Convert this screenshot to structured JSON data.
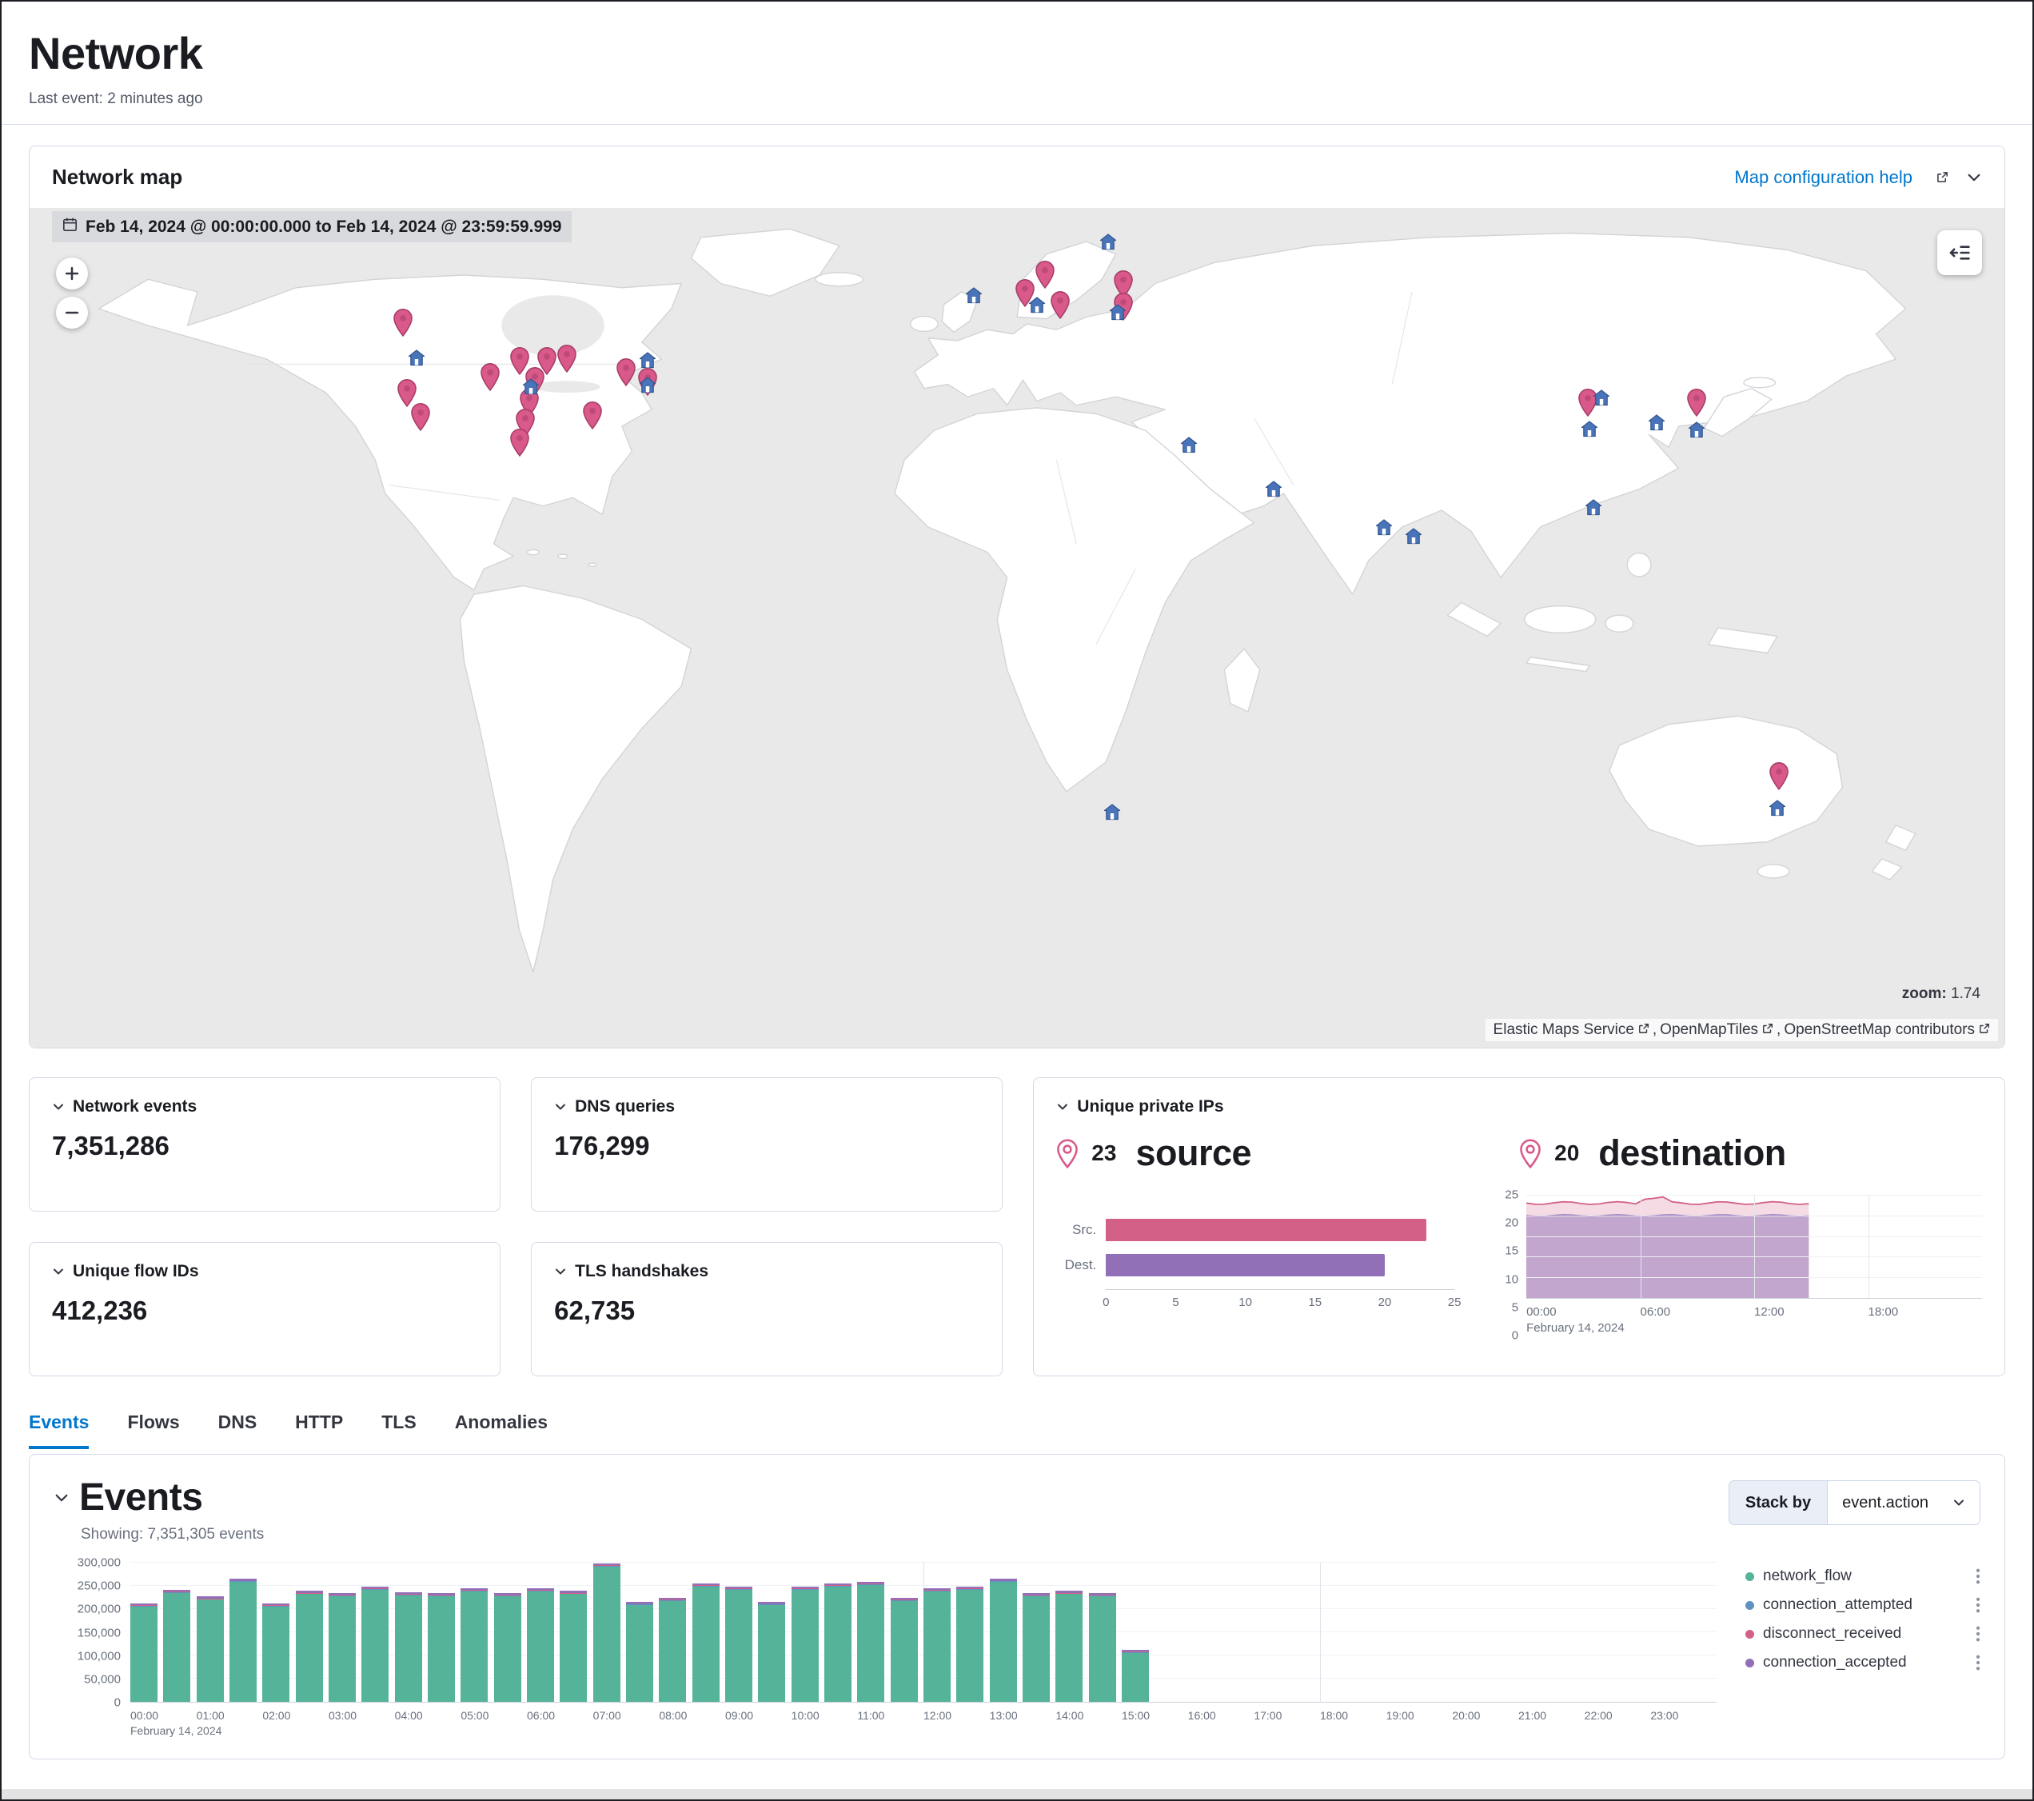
{
  "header": {
    "title": "Network",
    "last_event": "Last event: 2 minutes ago"
  },
  "map_panel": {
    "title": "Network map",
    "help_link": "Map configuration help",
    "date_badge": "Feb 14, 2024 @ 00:00:00.000 to Feb 14, 2024 @ 23:59:59.999",
    "zoom_label": "zoom:",
    "zoom_value": "1.74",
    "attribution_links": [
      "Elastic Maps Service",
      "OpenMapTiles",
      "OpenStreetMap contributors"
    ],
    "colors": {
      "source_pin": "#d9598b",
      "source_pin_stroke": "#a83e67",
      "host_marker": "#4a74b9",
      "host_marker_stroke": "#33568f",
      "ocean": "#e9e9e9",
      "land": "#ffffff"
    },
    "source_pins": [
      [
        18.9,
        15.6
      ],
      [
        23.3,
        22.1
      ],
      [
        24.8,
        20.2
      ],
      [
        26.2,
        20.2
      ],
      [
        27.2,
        19.9
      ],
      [
        25.6,
        22.6
      ],
      [
        25.3,
        25.1
      ],
      [
        25.1,
        27.5
      ],
      [
        24.8,
        29.9
      ],
      [
        28.5,
        26.7
      ],
      [
        30.2,
        21.5
      ],
      [
        31.3,
        22.7
      ],
      [
        19.1,
        24.0
      ],
      [
        19.8,
        26.9
      ],
      [
        51.4,
        9.9
      ],
      [
        52.2,
        13.5
      ],
      [
        50.4,
        12.1
      ],
      [
        55.4,
        11.0
      ],
      [
        55.4,
        13.7
      ],
      [
        84.4,
        25.1
      ],
      [
        78.9,
        25.1
      ],
      [
        88.6,
        69.6
      ]
    ],
    "host_markers": [
      [
        19.6,
        18.1
      ],
      [
        25.4,
        21.5
      ],
      [
        31.3,
        18.4
      ],
      [
        31.3,
        21.3
      ],
      [
        47.8,
        10.7
      ],
      [
        51.0,
        11.8
      ],
      [
        55.1,
        12.7
      ],
      [
        54.6,
        4.3
      ],
      [
        58.7,
        28.5
      ],
      [
        63.0,
        33.7
      ],
      [
        68.6,
        38.3
      ],
      [
        70.1,
        39.3
      ],
      [
        79.6,
        22.9
      ],
      [
        82.4,
        25.8
      ],
      [
        84.4,
        26.7
      ],
      [
        79.0,
        26.6
      ],
      [
        79.2,
        35.9
      ],
      [
        54.8,
        72.2
      ],
      [
        88.5,
        71.7
      ]
    ]
  },
  "kpi_cards": [
    {
      "label": "Network events",
      "value": "7,351,286"
    },
    {
      "label": "DNS queries",
      "value": "176,299"
    },
    {
      "label": "Unique flow IDs",
      "value": "412,236"
    },
    {
      "label": "TLS handshakes",
      "value": "62,735"
    }
  ],
  "unique_ips": {
    "label": "Unique private IPs",
    "source_count": "23",
    "source_label": "source",
    "dest_count": "20",
    "dest_label": "destination"
  },
  "tabs": [
    {
      "label": "Events",
      "active": true
    },
    {
      "label": "Flows",
      "active": false
    },
    {
      "label": "DNS",
      "active": false
    },
    {
      "label": "HTTP",
      "active": false
    },
    {
      "label": "TLS",
      "active": false
    },
    {
      "label": "Anomalies",
      "active": false
    }
  ],
  "events_panel": {
    "title": "Events",
    "showing": "Showing: 7,351,305 events",
    "stack_by_label": "Stack by",
    "stack_by_value": "event.action",
    "legend": [
      {
        "label": "network_flow",
        "color": "#54b399"
      },
      {
        "label": "connection_attempted",
        "color": "#6092c0"
      },
      {
        "label": "disconnect_received",
        "color": "#d36086"
      },
      {
        "label": "connection_accepted",
        "color": "#9170b8"
      }
    ]
  },
  "chart_data": [
    {
      "name": "unique_private_ips_bar",
      "type": "bar",
      "orientation": "horizontal",
      "categories": [
        "Src.",
        "Dest."
      ],
      "values": [
        23,
        20
      ],
      "colors": [
        "#d36086",
        "#9170b8"
      ],
      "xlim": [
        0,
        25
      ],
      "x_ticks": [
        0,
        5,
        10,
        15,
        20,
        25
      ]
    },
    {
      "name": "unique_private_ips_over_time",
      "type": "area",
      "x_ticks": [
        "00:00",
        "06:00",
        "12:00",
        "18:00"
      ],
      "date_label": "February 14, 2024",
      "ylim": [
        0,
        25
      ],
      "y_ticks": [
        25,
        20,
        15,
        10,
        5,
        0
      ],
      "series": [
        {
          "name": "source",
          "color": "#d36086",
          "approx_level": 23
        },
        {
          "name": "destination",
          "color": "#9170b8",
          "approx_level": 20
        }
      ],
      "data_end_fraction": 0.62
    },
    {
      "name": "events_histogram",
      "type": "bar",
      "stacked_by": "event.action",
      "bin_minutes": 30,
      "x_axis_ticks": [
        "00:00",
        "01:00",
        "02:00",
        "03:00",
        "04:00",
        "05:00",
        "06:00",
        "07:00",
        "08:00",
        "09:00",
        "10:00",
        "11:00",
        "12:00",
        "13:00",
        "14:00",
        "15:00",
        "16:00",
        "17:00",
        "18:00",
        "19:00",
        "20:00",
        "21:00",
        "22:00",
        "23:00"
      ],
      "date_label": "February 14, 2024",
      "ylim": [
        0,
        300000
      ],
      "y_ticks": [
        300000,
        250000,
        200000,
        150000,
        100000,
        50000,
        0
      ],
      "series": [
        {
          "name": "network_flow",
          "color": "#54b399",
          "values": [
            205000,
            235000,
            220000,
            258000,
            205000,
            232000,
            228000,
            242000,
            230000,
            228000,
            238000,
            228000,
            238000,
            232000,
            292000,
            208000,
            218000,
            248000,
            242000,
            208000,
            242000,
            248000,
            252000,
            218000,
            238000,
            242000,
            258000,
            228000,
            232000,
            228000,
            105000
          ]
        },
        {
          "name": "connection_attempted",
          "color": "#6092c0",
          "approx_value_per_bin": 1500
        },
        {
          "name": "disconnect_received",
          "color": "#d36086",
          "approx_value_per_bin": 1500
        },
        {
          "name": "connection_accepted",
          "color": "#9170b8",
          "approx_value_per_bin": 4000
        }
      ]
    }
  ]
}
